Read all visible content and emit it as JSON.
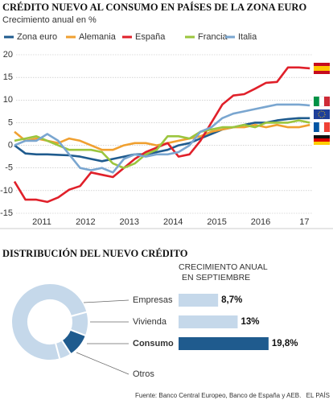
{
  "chart_data": [
    {
      "type": "line",
      "title": "CRÉDITO NUEVO AL CONSUMO EN PAÍSES DE LA ZONA EURO",
      "subtitle": "Crecimiento anual en %",
      "categories": [
        null,
        null,
        null,
        "2011",
        null,
        null,
        null,
        "2012",
        null,
        null,
        null,
        "2013",
        null,
        null,
        null,
        "2014",
        null,
        null,
        null,
        "2015",
        null,
        null,
        null,
        "2016",
        null,
        null,
        null,
        "17"
      ],
      "ylim": [
        -15,
        20
      ],
      "yticks": [
        -15,
        -10,
        -5,
        0,
        5,
        10,
        15,
        20
      ],
      "grid": true,
      "series": [
        {
          "name": "Zona euro",
          "color": "#1f5b8e",
          "values": [
            0,
            -1.8,
            -2,
            -2,
            -2.1,
            -2.2,
            -2.5,
            -3,
            -3.5,
            -3,
            -2.5,
            -2,
            -2,
            -1.5,
            -1,
            0,
            0.5,
            1.5,
            2.5,
            3.5,
            4,
            4.5,
            5,
            5,
            5.5,
            5.8,
            6,
            6
          ]
        },
        {
          "name": "Alemania",
          "color": "#f0a030",
          "values": [
            3,
            1,
            1.5,
            1,
            0.5,
            1.5,
            1,
            0,
            -1,
            -1,
            0,
            0.5,
            0.5,
            0,
            0.5,
            1,
            1.5,
            2,
            3,
            3.5,
            4,
            4,
            4.5,
            4,
            4.5,
            4,
            4,
            4.5
          ]
        },
        {
          "name": "España",
          "color": "#e0202a",
          "values": [
            -8,
            -12,
            -12,
            -12.5,
            -11.5,
            -9.8,
            -9,
            -6,
            -6.5,
            -7,
            -5,
            -3,
            -1.5,
            -0.5,
            0.5,
            -2.5,
            -2,
            1,
            5,
            9,
            11,
            11.3,
            12.5,
            13.8,
            14,
            17.2,
            17.2,
            17
          ]
        },
        {
          "name": "Francia",
          "color": "#9bc53d",
          "values": [
            1,
            1.5,
            2,
            1,
            0,
            -1,
            -1,
            -1,
            -1.5,
            -4,
            -5,
            -4,
            -2,
            -1,
            2,
            2,
            1.5,
            3,
            3.5,
            4,
            4,
            4.5,
            4,
            5,
            5,
            5,
            5.5,
            5
          ]
        },
        {
          "name": "Italia",
          "color": "#7aa6d0",
          "values": [
            0,
            1,
            1,
            2.5,
            1,
            -2,
            -5,
            -5.5,
            -5,
            -6,
            -3,
            -2,
            -2.5,
            -2,
            -2,
            -1.5,
            0,
            3,
            4,
            6,
            7,
            7.5,
            8,
            8.5,
            9,
            9,
            9,
            8.8
          ]
        }
      ]
    },
    {
      "type": "pie",
      "title": "DISTRIBUCIÓN DEL NUEVO CRÉDITO",
      "categories": [
        "Empresas",
        "Vivienda",
        "Consumo",
        "Otros"
      ],
      "values": [
        75,
        10,
        10,
        5
      ],
      "colors": [
        "#c5d8ea",
        "#c5d8ea",
        "#1f5b8e",
        "#c5d8ea"
      ]
    },
    {
      "type": "bar",
      "title": [
        "CRECIMIENTO ANUAL",
        "EN SEPTIEMBRE"
      ],
      "values": [
        8.7,
        13,
        19.8
      ],
      "value_labels": [
        "8,7%",
        "13%",
        "19,8%"
      ],
      "colors": [
        "#c5d8ea",
        "#c5d8ea",
        "#1f5b8e"
      ]
    }
  ],
  "footer": {
    "source": "Fuente: Banco Central Europeo, Banco de España y AEB.",
    "brand": "EL PAÍS"
  }
}
